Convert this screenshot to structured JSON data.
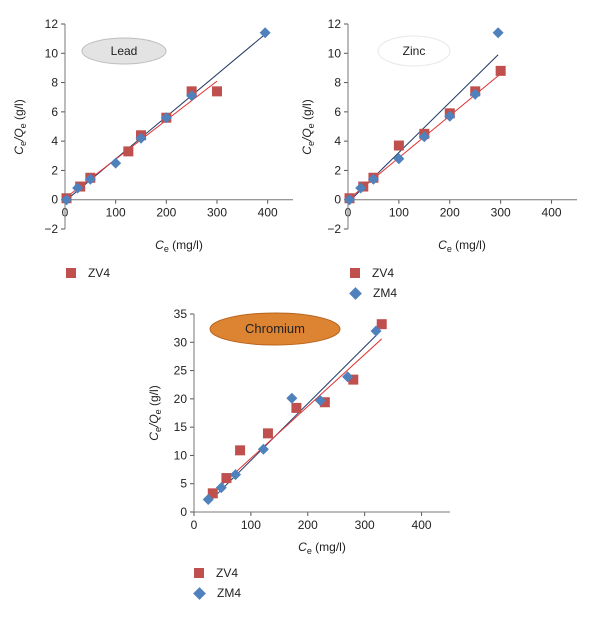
{
  "colors": {
    "zv4": "#c0504d",
    "zm4": "#4f81bd",
    "zm4_fit": "#1f3864",
    "zv4_fit": "#e03030"
  },
  "chart_data": [
    {
      "type": "scatter",
      "badge": "Lead",
      "xlabel_main": "C",
      "xlabel_sub": "e",
      "xlabel_unit": " (mg/l)",
      "ylabel_main": "C",
      "ylabel_sub1": "e",
      "ylabel_mid": "/Q",
      "ylabel_sub2": "e",
      "ylabel_unit": " (g/l)",
      "xlim": [
        0,
        450
      ],
      "ylim": [
        -2,
        12
      ],
      "xticks": [
        "0",
        "100",
        "200",
        "300",
        "400"
      ],
      "yticks": [
        "−2",
        "0",
        "2",
        "4",
        "6",
        "8",
        "10",
        "12"
      ],
      "series": [
        {
          "name": "ZV4",
          "marker": "square",
          "x": [
            3,
            30,
            50,
            125,
            150,
            200,
            250,
            300
          ],
          "y": [
            0.1,
            0.9,
            1.5,
            3.3,
            4.4,
            5.6,
            7.4,
            7.4
          ]
        },
        {
          "marker": "diamond",
          "x": [
            3,
            25,
            50,
            100,
            150,
            200,
            250,
            395
          ],
          "y": [
            0.0,
            0.8,
            1.4,
            2.5,
            4.2,
            5.6,
            7.1,
            11.4
          ]
        }
      ],
      "fits": [
        {
          "series": "ZM4",
          "x": [
            0,
            395
          ],
          "y": [
            -0.1,
            11.3
          ]
        },
        {
          "series": "ZV4",
          "x": [
            0,
            300
          ],
          "y": [
            0.1,
            8.1
          ]
        }
      ],
      "legend": [
        {
          "label": "ZV4",
          "marker": "square"
        }
      ]
    },
    {
      "type": "scatter",
      "badge": "Zinc",
      "xlabel_main": "C",
      "xlabel_sub": "e",
      "xlabel_unit": " (mg/l)",
      "ylabel_main": "C",
      "ylabel_sub1": "e",
      "ylabel_mid": "/Q",
      "ylabel_sub2": "e",
      "ylabel_unit": " (g/l)",
      "xlim": [
        0,
        450
      ],
      "ylim": [
        -2,
        12
      ],
      "xticks": [
        "0",
        "100",
        "200",
        "300",
        "400"
      ],
      "yticks": [
        "−2",
        "0",
        "2",
        "4",
        "6",
        "8",
        "10",
        "12"
      ],
      "series": [
        {
          "name": "ZV4",
          "marker": "square",
          "x": [
            3,
            30,
            50,
            100,
            150,
            200,
            250,
            300
          ],
          "y": [
            0.1,
            0.9,
            1.5,
            3.7,
            4.5,
            5.9,
            7.4,
            8.8
          ]
        },
        {
          "name": "ZM4",
          "marker": "diamond",
          "x": [
            3,
            25,
            50,
            100,
            150,
            200,
            250,
            295
          ],
          "y": [
            0.0,
            0.8,
            1.4,
            2.8,
            4.3,
            5.7,
            7.2,
            11.4
          ]
        }
      ],
      "fits": [
        {
          "series": "ZM4",
          "x": [
            0,
            295
          ],
          "y": [
            -0.2,
            9.9
          ]
        },
        {
          "series": "ZV4",
          "x": [
            0,
            300
          ],
          "y": [
            0.0,
            8.6
          ]
        }
      ],
      "legend": [
        {
          "label": "ZV4",
          "marker": "square"
        },
        {
          "label": "ZM4",
          "marker": "diamond"
        }
      ]
    },
    {
      "type": "scatter",
      "badge": "Chromium",
      "xlabel_main": "C",
      "xlabel_sub": "e",
      "xlabel_unit": " (mg/l)",
      "ylabel_main": "C",
      "ylabel_sub1": "e",
      "ylabel_mid": "/Q",
      "ylabel_sub2": "e",
      "ylabel_unit": " (g/l)",
      "xlim": [
        0,
        450
      ],
      "ylim": [
        0,
        35
      ],
      "xticks": [
        "0",
        "100",
        "200",
        "300",
        "400"
      ],
      "yticks": [
        "0",
        "5",
        "10",
        "15",
        "20",
        "25",
        "30",
        "35"
      ],
      "series": [
        {
          "name": "ZV4",
          "marker": "square",
          "x": [
            33,
            57,
            81,
            130,
            180,
            230,
            280,
            330
          ],
          "y": [
            3.3,
            6.0,
            10.9,
            13.9,
            18.4,
            19.4,
            23.4,
            33.2
          ]
        },
        {
          "name": "ZM4",
          "marker": "diamond",
          "x": [
            25,
            48,
            73,
            122,
            172,
            222,
            270,
            320
          ],
          "y": [
            2.2,
            4.3,
            6.6,
            11.1,
            20.1,
            19.7,
            23.9,
            32.0
          ]
        }
      ],
      "fits": [
        {
          "series": "ZM4",
          "x": [
            25,
            320
          ],
          "y": [
            1.6,
            31.2
          ]
        },
        {
          "series": "ZV4",
          "x": [
            25,
            330
          ],
          "y": [
            2.6,
            30.6
          ]
        }
      ],
      "legend": [
        {
          "label": "ZV4",
          "marker": "square"
        },
        {
          "label": "ZM4",
          "marker": "diamond"
        }
      ]
    }
  ]
}
